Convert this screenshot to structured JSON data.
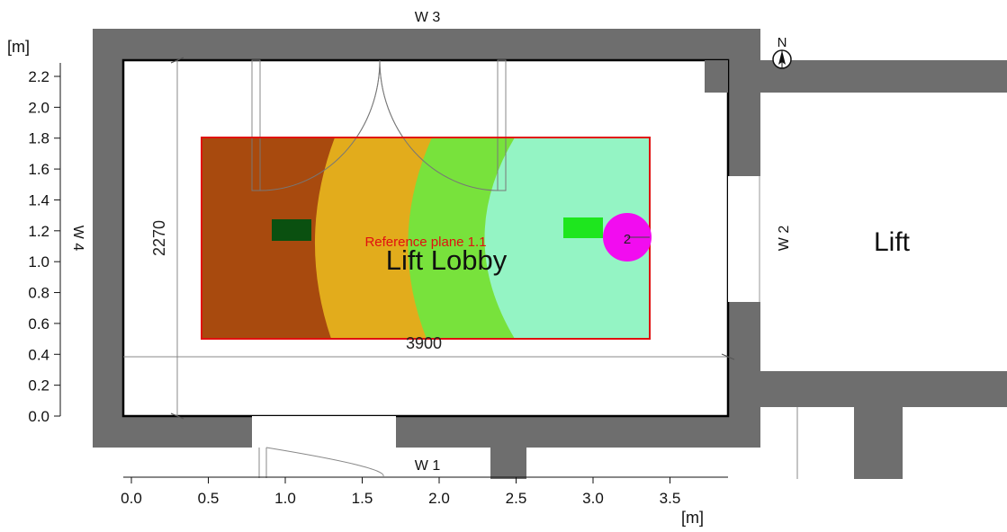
{
  "walls": {
    "top": "W 3",
    "bottom": "W 1",
    "left": "W 4",
    "right": "W 2"
  },
  "compass": {
    "label": "N"
  },
  "rooms": {
    "main": "Lift Lobby",
    "adjacent": "Lift"
  },
  "reference_plane": {
    "label": "Reference plane 1.1"
  },
  "dimensions": {
    "width": "3900",
    "height": "2270"
  },
  "luminaire": {
    "label": "2"
  },
  "axes": {
    "y_unit": "[m]",
    "x_unit": "[m]",
    "y_ticks": [
      "2.2",
      "2.0",
      "1.8",
      "1.6",
      "1.4",
      "1.2",
      "1.0",
      "0.8",
      "0.6",
      "0.4",
      "0.2",
      "0.0"
    ],
    "x_ticks": [
      "0.0",
      "0.5",
      "1.0",
      "1.5",
      "2.0",
      "2.5",
      "3.0",
      "3.5"
    ]
  },
  "colors": {
    "wall": "#6e6e6e",
    "iso_zone_1": "#a84a0e",
    "iso_zone_2": "#e2ac1c",
    "iso_zone_3": "#78e23c",
    "iso_zone_4": "#94f4c4",
    "reference_plane_outline": "#e01010",
    "luminaire": "#f20cf0",
    "object_dark": "#0a5010",
    "object_light": "#1ee61e"
  }
}
